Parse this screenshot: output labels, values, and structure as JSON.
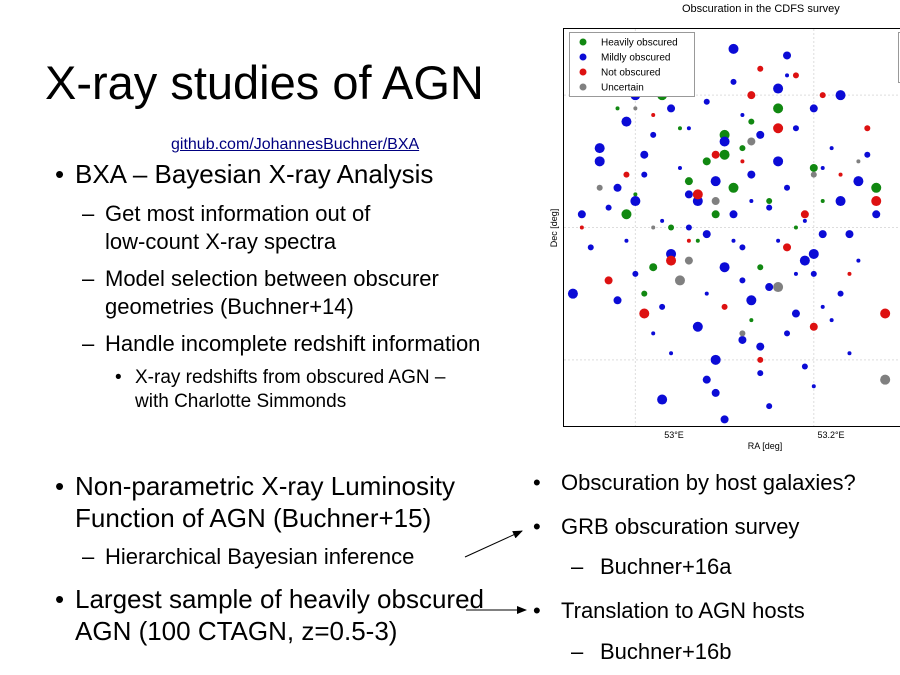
{
  "slide": {
    "title": "X-ray studies of AGN",
    "link": "github.com/JohannesBuchner/BXA"
  },
  "left": {
    "b1": "BXA – Bayesian X-ray Analysis",
    "b1_subs": [
      "Get most information out of",
      "low-count X-ray spectra",
      "Model selection between obscurer",
      "geometries (Buchner+14)",
      "Handle incomplete redshift information"
    ],
    "b1_subsub": [
      "X-ray redshifts from obscured AGN –",
      "with Charlotte Simmonds"
    ],
    "b2": [
      "Non-parametric X-ray Luminosity",
      "Function of AGN (Buchner+15)"
    ],
    "b2_sub": "Hierarchical Bayesian inference",
    "b3": [
      "Largest sample of heavily obscured",
      "AGN (100 CTAGN, z=0.5-3)"
    ]
  },
  "right": {
    "items": [
      "Obscuration by host galaxies?",
      "GRB obscuration survey",
      "Buchner+16a",
      "Translation to AGN hosts",
      "Buchner+16b"
    ]
  },
  "bullet_char": "•",
  "dash_char": "–",
  "chart_data": {
    "type": "scatter",
    "title": "Obscuration in the CDFS survey",
    "xlabel": "RA [deg]",
    "ylabel": "Dec [deg]",
    "xticks": [
      "53°E",
      "53.2°E"
    ],
    "grid": true,
    "legend": "top-left",
    "series": [
      {
        "name": "Heavily obscured",
        "color": "#118811",
        "x": [
          53.05,
          53.1,
          53.08,
          53.12,
          53.0,
          52.99,
          53.06,
          53.15,
          53.18,
          53.03,
          53.09,
          53.13,
          53.07,
          53.11,
          53.02,
          53.14,
          52.98,
          53.16,
          53.2,
          53.04,
          53.13,
          53.1,
          53.06,
          53.01,
          53.21,
          53.27
        ],
        "y": [
          -27.75,
          -27.76,
          -27.8,
          -27.78,
          -27.85,
          -27.88,
          -27.83,
          -27.86,
          -27.9,
          -27.7,
          -27.88,
          -27.74,
          -27.92,
          -27.84,
          -27.96,
          -27.96,
          -27.72,
          -27.72,
          -27.81,
          -27.9,
          -28.04,
          -27.79,
          -27.68,
          -28.0,
          -27.86,
          -27.84
        ]
      },
      {
        "name": "Mildly  obscured",
        "color": "#0b0bd6",
        "x": [
          53.0,
          53.04,
          53.08,
          53.12,
          53.16,
          53.2,
          53.02,
          53.06,
          53.1,
          53.14,
          53.18,
          53.22,
          52.96,
          52.98,
          53.01,
          53.05,
          53.09,
          53.13,
          53.17,
          53.21,
          53.25,
          52.94,
          52.97,
          53.03,
          53.07,
          53.11,
          53.15,
          53.19,
          53.23,
          53.27,
          52.95,
          52.99,
          53.04,
          53.08,
          53.12,
          53.16,
          53.2,
          53.24,
          53.0,
          53.05,
          53.1,
          53.15,
          53.2,
          53.25,
          52.93,
          52.98,
          53.03,
          53.08,
          53.13,
          53.18,
          53.23,
          53.02,
          53.07,
          53.12,
          53.17,
          53.22,
          52.96,
          53.01,
          53.06,
          53.11,
          53.16,
          53.21,
          53.26,
          53.04,
          53.09,
          53.14,
          53.19,
          53.24,
          52.99,
          53.05,
          53.11,
          53.17,
          53.23,
          53.08,
          53.14,
          53.2,
          53.0,
          53.06,
          53.12,
          53.18,
          53.03,
          53.09,
          53.15,
          53.21,
          53.11,
          53.17,
          53.06,
          53.13,
          53.19,
          53.1
        ],
        "y": [
          -27.7,
          -27.72,
          -27.71,
          -27.73,
          -27.69,
          -27.72,
          -27.76,
          -27.75,
          -27.77,
          -27.76,
          -27.75,
          -27.78,
          -27.8,
          -27.84,
          -27.82,
          -27.81,
          -27.83,
          -27.82,
          -27.84,
          -27.81,
          -27.83,
          -27.88,
          -27.87,
          -27.89,
          -27.86,
          -27.88,
          -27.87,
          -27.89,
          -27.86,
          -27.88,
          -27.93,
          -27.92,
          -27.94,
          -27.91,
          -27.93,
          -27.92,
          -27.94,
          -27.91,
          -27.97,
          -27.98,
          -27.96,
          -27.99,
          -27.97,
          -27.95,
          -28.0,
          -28.01,
          -28.02,
          -28.0,
          -28.01,
          -28.03,
          -28.0,
          -28.06,
          -28.05,
          -28.07,
          -28.06,
          -28.04,
          -27.78,
          -27.79,
          -27.9,
          -27.92,
          -27.8,
          -27.91,
          -27.79,
          -28.09,
          -28.1,
          -28.08,
          -28.11,
          -28.09,
          -27.74,
          -27.66,
          -27.68,
          -27.67,
          -27.7,
          -28.13,
          -28.12,
          -28.14,
          -27.86,
          -27.85,
          -27.98,
          -27.97,
          -28.16,
          -28.15,
          -28.17,
          -28.02,
          -27.63,
          -27.64,
          -27.62,
          -27.86,
          -27.95,
          -28.19
        ]
      },
      {
        "name": "Not obscured",
        "color": "#dd1111",
        "x": [
          53.05,
          53.14,
          52.94,
          53.27,
          52.97,
          53.21,
          53.02,
          53.16,
          53.09,
          53.26,
          53.24,
          53.07,
          53.19,
          52.99,
          53.12,
          53.04,
          53.17,
          53.1,
          53.23,
          53.01,
          53.2,
          53.14,
          53.06,
          53.28,
          53.13,
          53.18
        ],
        "y": [
          -27.64,
          -27.66,
          -27.9,
          -27.86,
          -27.98,
          -27.7,
          -27.73,
          -27.75,
          -27.79,
          -27.75,
          -27.97,
          -27.85,
          -27.88,
          -27.82,
          -27.8,
          -27.95,
          -27.93,
          -28.02,
          -27.82,
          -28.03,
          -28.05,
          -28.1,
          -27.92,
          -28.03,
          -27.7,
          -27.67
        ]
      },
      {
        "name": "Uncertain",
        "color": "#808080",
        "x": [
          52.96,
          53.0,
          53.05,
          53.13,
          53.2,
          53.25,
          53.28,
          53.06,
          53.12,
          53.02,
          53.16,
          53.09
        ],
        "y": [
          -27.84,
          -27.72,
          -27.98,
          -27.77,
          -27.82,
          -27.8,
          -28.13,
          -27.95,
          -28.06,
          -27.9,
          -27.99,
          -27.86
        ]
      }
    ]
  }
}
